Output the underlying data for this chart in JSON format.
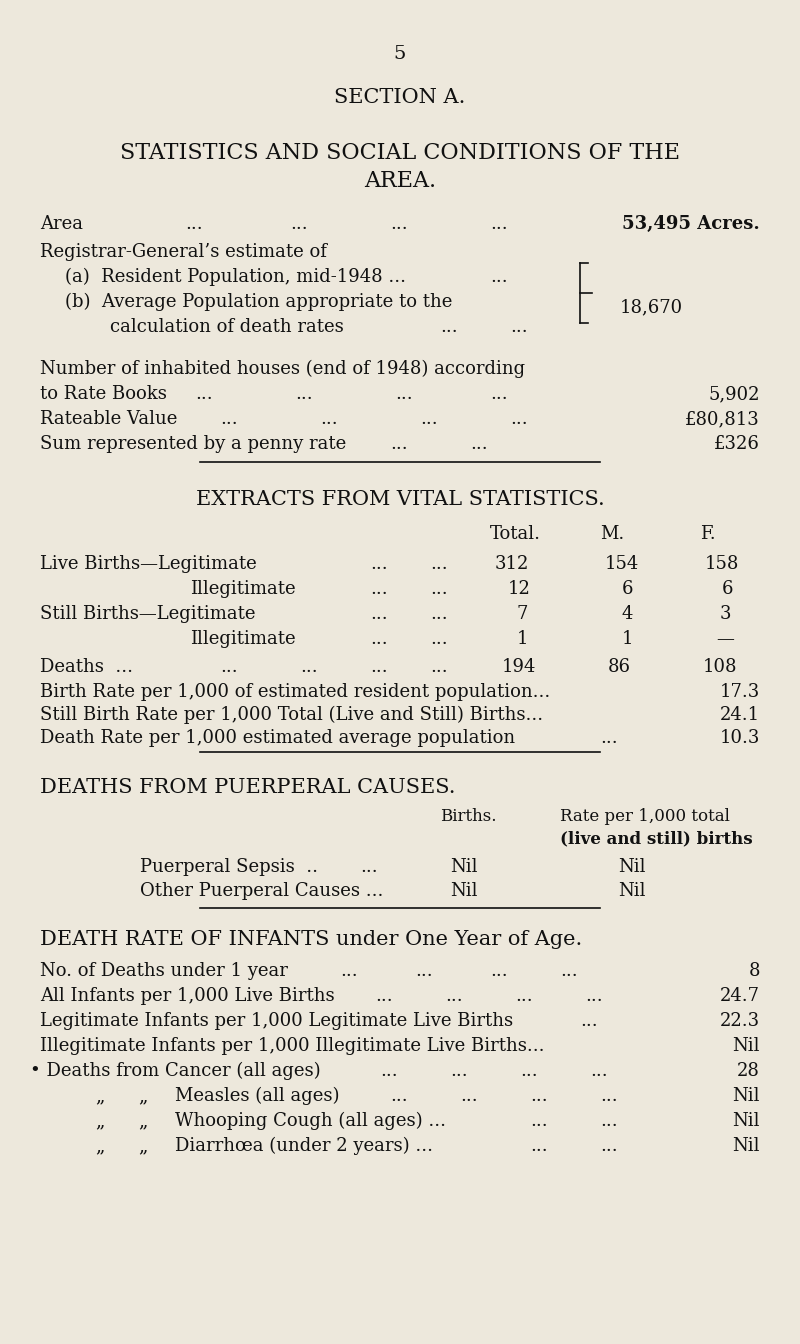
{
  "bg_color": "#EDE8DC",
  "text_color": "#111111",
  "page_number": "5",
  "section_title": "SECTION A.",
  "main_title_line1": "STATISTICS AND SOCIAL CONDITIONS OF THE",
  "main_title_line2": "AREA.",
  "font_family": "DejaVu Serif"
}
